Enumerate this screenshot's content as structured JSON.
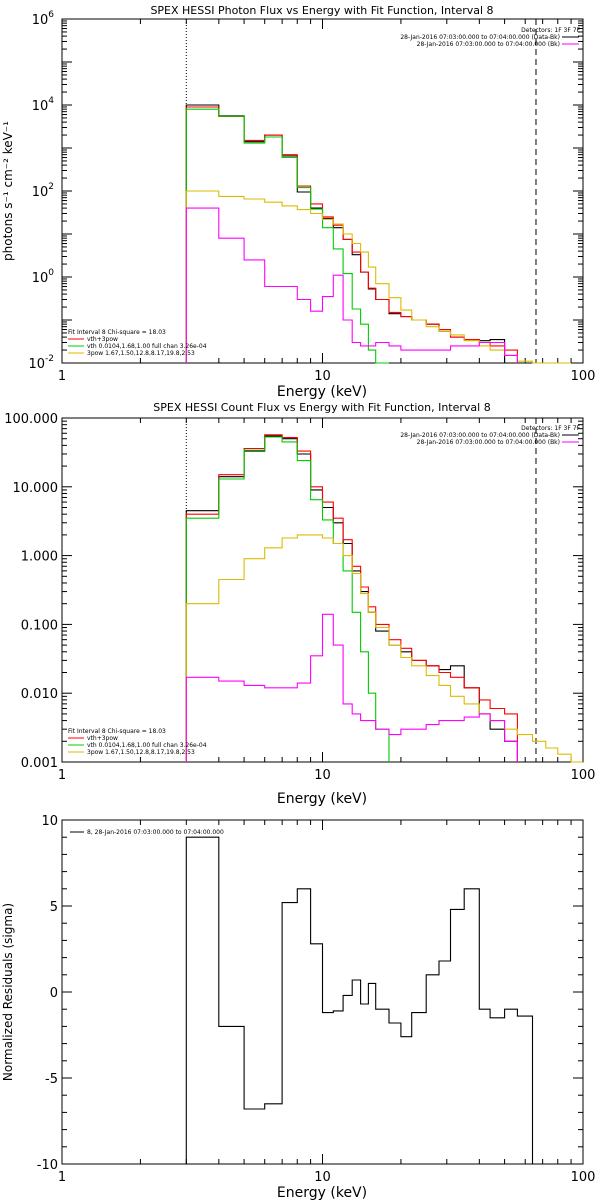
{
  "chart_data": [
    {
      "type": "line",
      "title": "SPEX HESSI Photon Flux vs Energy with Fit Function, Interval 8",
      "xlabel": "Energy (keV)",
      "ylabel": "photons s⁻¹ cm⁻² keV⁻¹",
      "xscale": "log",
      "yscale": "log",
      "xlim": [
        1,
        100
      ],
      "ylim": [
        0.01,
        1000000
      ],
      "xticks": [
        {
          "v": 1,
          "label": "1"
        },
        {
          "v": 10,
          "label": "10"
        },
        {
          "v": 100,
          "label": "100"
        }
      ],
      "yticks": [
        {
          "v": 0.01,
          "base": "10",
          "exp": "-2"
        },
        {
          "v": 1,
          "base": "10",
          "exp": "0"
        },
        {
          "v": 100,
          "base": "10",
          "exp": "2"
        },
        {
          "v": 10000,
          "base": "10",
          "exp": "4"
        },
        {
          "v": 1000000,
          "base": "10",
          "exp": "6"
        }
      ],
      "vlines": [
        {
          "x": 3.0,
          "style": "dotted"
        },
        {
          "x": 66,
          "style": "dashed"
        }
      ],
      "legend_top": {
        "heading": "Detectors: 1F 3F 7F",
        "lines": [
          {
            "text": "28-Jan-2016 07:03:00.000 to 07:04:00.000 (Data-Bk)",
            "color": "#000000"
          },
          {
            "text": "28-Jan-2016 07:03:00.000 to 07:04:00.000 (Bk)",
            "color": "#ff00ff"
          }
        ]
      },
      "legend_bottom": {
        "heading": "Fit Interval 8   Chi-square = 18.03",
        "lines": [
          {
            "text": "vth+3pow",
            "color": "#ff0000"
          },
          {
            "text": "vth 0.0104,1.68,1.00  full chan 3.26e-04",
            "color": "#00cc00"
          },
          {
            "text": "3pow 1.67,1.50,12.8,8.17,19.8,2.53",
            "color": "#ddbb00"
          }
        ]
      },
      "edges": [
        3.0,
        4.0,
        5.0,
        6.0,
        7.0,
        8.0,
        9.0,
        10.0,
        11.0,
        12.0,
        13.0,
        14.0,
        15.0,
        16.0,
        18.0,
        20.0,
        22.0,
        25.0,
        28.0,
        31.0,
        35.0,
        40.0,
        44.0,
        50.0,
        56.0,
        64.0,
        72.0,
        80.0,
        90.0
      ],
      "series": [
        {
          "name": "Data-Bk",
          "color": "#000000",
          "values": [
            10000,
            5600,
            1400,
            2000,
            650,
            95,
            40,
            23,
            14,
            7.5,
            3.3,
            1.3,
            0.53,
            0.3,
            0.14,
            0.12,
            0.1,
            0.08,
            0.055,
            0.04,
            0.035,
            0.033,
            0.035,
            0.01,
            null,
            null,
            null,
            null
          ]
        },
        {
          "name": "vth+3pow",
          "color": "#ff0000",
          "values": [
            9000,
            5400,
            1500,
            2000,
            700,
            130,
            50,
            25,
            16,
            7.5,
            3.8,
            1.3,
            0.55,
            0.3,
            0.15,
            0.12,
            0.1,
            0.08,
            0.06,
            0.04,
            0.035,
            0.03,
            0.025,
            0.02,
            null,
            null,
            null,
            null
          ]
        },
        {
          "name": "vth",
          "color": "#00cc00",
          "values": [
            8000,
            5500,
            1300,
            1800,
            600,
            120,
            38,
            14,
            4.5,
            1.2,
            0.18,
            0.08,
            0.02,
            0.005,
            null,
            null,
            null,
            null,
            null,
            null,
            null,
            null,
            null,
            null,
            null,
            null,
            null,
            null
          ]
        },
        {
          "name": "3pow",
          "color": "#ddbb00",
          "values": [
            100,
            75,
            65,
            55,
            45,
            37,
            30,
            22,
            17,
            10,
            6,
            3.8,
            1.7,
            0.7,
            0.33,
            0.17,
            0.1,
            0.07,
            0.055,
            0.045,
            0.033,
            0.025,
            0.02,
            0.015,
            0.011,
            0.009,
            0.008,
            0.007
          ]
        },
        {
          "name": "Bk",
          "color": "#ff00ff",
          "values": [
            40,
            8,
            2.5,
            0.6,
            0.6,
            0.3,
            0.16,
            0.35,
            1.1,
            0.1,
            0.03,
            0.025,
            0.025,
            0.03,
            0.025,
            0.02,
            0.02,
            0.02,
            0.02,
            0.025,
            0.025,
            0.03,
            0.03,
            0.015,
            null,
            null,
            null,
            null
          ]
        }
      ]
    },
    {
      "type": "line",
      "title": "SPEX HESSI Count Flux vs Energy with Fit Function, Interval 8",
      "xlabel": "Energy (keV)",
      "ylabel": "",
      "xscale": "log",
      "yscale": "log",
      "xlim": [
        1,
        100
      ],
      "ylim": [
        0.001,
        100
      ],
      "xticks": [
        {
          "v": 1,
          "label": "1"
        },
        {
          "v": 10,
          "label": "10"
        },
        {
          "v": 100,
          "label": "100"
        }
      ],
      "yticks": [
        {
          "v": 0.001,
          "label": "0.001"
        },
        {
          "v": 0.01,
          "label": "0.010"
        },
        {
          "v": 0.1,
          "label": "0.100"
        },
        {
          "v": 1,
          "label": "1.000"
        },
        {
          "v": 10,
          "label": "10.000"
        },
        {
          "v": 100,
          "label": "100.000"
        }
      ],
      "vlines": [
        {
          "x": 3.0,
          "style": "dotted"
        },
        {
          "x": 66,
          "style": "dashed"
        }
      ],
      "legend_top": {
        "heading": "Detectors: 1F 3F 7F",
        "lines": [
          {
            "text": "28-Jan-2016 07:03:00.000 to 07:04:00.000 (Data-Bk)",
            "color": "#000000"
          },
          {
            "text": "28-Jan-2016 07:03:00.000 to 07:04:00.000 (Bk)",
            "color": "#ff00ff"
          }
        ]
      },
      "legend_bottom": {
        "heading": "Fit Interval 8   Chi-square = 18.03",
        "lines": [
          {
            "text": "vth+3pow",
            "color": "#ff0000"
          },
          {
            "text": "vth 0.0104,1.68,1.00  full chan 3.26e-04",
            "color": "#00cc00"
          },
          {
            "text": "3pow 1.67,1.50,12.8,8.17,19.8,2.53",
            "color": "#ddbb00"
          }
        ]
      },
      "edges": [
        3.0,
        4.0,
        5.0,
        6.0,
        7.0,
        8.0,
        9.0,
        10.0,
        11.0,
        12.0,
        13.0,
        14.0,
        15.0,
        16.0,
        18.0,
        20.0,
        22.0,
        25.0,
        28.0,
        31.0,
        35.0,
        40.0,
        44.0,
        50.0,
        56.0,
        64.0,
        72.0,
        80.0,
        90.0,
        100.0
      ],
      "series": [
        {
          "name": "Data-Bk",
          "color": "#000000",
          "values": [
            4.5,
            14,
            33,
            55,
            50,
            30,
            9,
            5,
            3,
            1.5,
            0.6,
            0.3,
            0.15,
            0.08,
            0.05,
            0.04,
            0.03,
            0.025,
            0.022,
            0.025,
            0.012,
            0.005,
            0.003,
            0.002,
            null,
            null,
            null,
            null,
            null
          ]
        },
        {
          "name": "vth+3pow",
          "color": "#ff0000",
          "values": [
            4,
            15,
            36,
            57,
            52,
            33,
            10,
            6,
            3.5,
            1.7,
            0.7,
            0.35,
            0.18,
            0.1,
            0.06,
            0.045,
            0.03,
            0.025,
            0.02,
            0.017,
            0.012,
            0.008,
            0.006,
            0.005,
            null,
            null,
            null,
            null,
            null
          ]
        },
        {
          "name": "vth",
          "color": "#00cc00",
          "values": [
            3.5,
            13,
            34,
            53,
            45,
            24,
            6.5,
            3.3,
            1.5,
            0.6,
            0.15,
            0.04,
            0.01,
            0.003,
            null,
            null,
            null,
            null,
            null,
            null,
            null,
            null,
            null,
            null,
            null,
            null,
            null,
            null,
            null
          ]
        },
        {
          "name": "3pow",
          "color": "#ddbb00",
          "values": [
            0.2,
            0.45,
            0.9,
            1.3,
            1.8,
            2.0,
            2.0,
            1.8,
            1.5,
            1.0,
            0.55,
            0.28,
            0.15,
            0.09,
            0.05,
            0.033,
            0.025,
            0.018,
            0.013,
            0.009,
            0.007,
            0.005,
            0.004,
            0.003,
            0.0025,
            0.002,
            0.0016,
            0.0013,
            0.001
          ]
        },
        {
          "name": "Bk",
          "color": "#ff00ff",
          "values": [
            0.017,
            0.015,
            0.013,
            0.012,
            0.012,
            0.014,
            0.035,
            0.14,
            0.05,
            0.007,
            0.005,
            0.004,
            0.004,
            0.003,
            0.0025,
            0.003,
            0.003,
            0.0035,
            0.004,
            0.004,
            0.0045,
            0.005,
            0.004,
            0.002,
            null,
            null,
            null,
            null,
            null
          ]
        }
      ]
    },
    {
      "type": "line",
      "title": "",
      "xlabel": "Energy (keV)",
      "ylabel": "Normalized Residuals (sigma)",
      "xscale": "log",
      "yscale": "linear",
      "xlim": [
        1,
        100
      ],
      "ylim": [
        -10,
        10
      ],
      "xticks": [
        {
          "v": 1,
          "label": "1"
        },
        {
          "v": 10,
          "label": "10"
        },
        {
          "v": 100,
          "label": "100"
        }
      ],
      "yticks": [
        {
          "v": -10,
          "label": "-10"
        },
        {
          "v": -5,
          "label": "-5"
        },
        {
          "v": 0,
          "label": "0"
        },
        {
          "v": 5,
          "label": "5"
        },
        {
          "v": 10,
          "label": "10"
        }
      ],
      "legend": {
        "text": "8, 28-Jan-2016 07:03:00.000 to 07:04:00.000"
      },
      "edges": [
        3.0,
        4.0,
        5.0,
        6.0,
        7.0,
        8.0,
        9.0,
        10.0,
        11.0,
        12.0,
        13.0,
        14.0,
        15.0,
        16.0,
        18.0,
        20.0,
        22.0,
        25.0,
        28.0,
        31.0,
        35.0,
        40.0,
        44.0,
        50.0,
        56.0,
        64.0,
        70.0
      ],
      "series": [
        {
          "name": "residuals",
          "color": "#000000",
          "values": [
            9,
            -2,
            -6.8,
            -6.5,
            5.2,
            6,
            2.8,
            -1.2,
            -1.1,
            -0.2,
            0.7,
            -0.7,
            0.5,
            -1,
            -1.8,
            -2.6,
            -1.2,
            1,
            1.8,
            4.8,
            6,
            -1,
            -1.5,
            -1,
            -1.4,
            null
          ]
        }
      ]
    }
  ]
}
